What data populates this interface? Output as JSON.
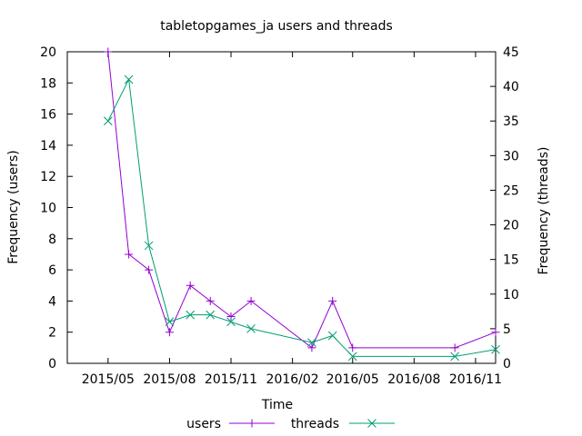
{
  "chart_data": {
    "type": "line",
    "title": "tabletopgames_ja users and threads",
    "xlabel": "Time",
    "ylabel_left": "Frequency (users)",
    "ylabel_right": "Frequency (threads)",
    "x_tick_labels": [
      "2015/05",
      "2015/08",
      "2015/11",
      "2016/02",
      "2016/05",
      "2016/08",
      "2016/11"
    ],
    "x_ticks": [
      "2015-05-01",
      "2015-08-01",
      "2015-11-01",
      "2016-02-01",
      "2016-05-01",
      "2016-08-01",
      "2016-11-01"
    ],
    "x_range": [
      "2015-03-01",
      "2016-12-01"
    ],
    "ylim_left": [
      0,
      20
    ],
    "yticks_left": [
      0,
      2,
      4,
      6,
      8,
      10,
      12,
      14,
      16,
      18,
      20
    ],
    "ylim_right": [
      0,
      45
    ],
    "yticks_right": [
      0,
      5,
      10,
      15,
      20,
      25,
      30,
      35,
      40,
      45
    ],
    "legend_position": "bottom-center",
    "series": [
      {
        "name": "users",
        "axis": "left",
        "color": "#9400d3",
        "marker": "plus",
        "x": [
          "2015-05-01",
          "2015-06-01",
          "2015-07-01",
          "2015-08-01",
          "2015-09-01",
          "2015-10-01",
          "2015-11-01",
          "2015-12-01",
          "2016-03-01",
          "2016-04-01",
          "2016-05-01",
          "2016-10-01",
          "2016-12-01"
        ],
        "values": [
          20,
          7,
          6,
          2,
          5,
          4,
          3,
          4,
          1,
          4,
          1,
          1,
          2
        ]
      },
      {
        "name": "threads",
        "axis": "right",
        "color": "#009e73",
        "marker": "cross",
        "x": [
          "2015-05-01",
          "2015-06-01",
          "2015-07-01",
          "2015-08-01",
          "2015-09-01",
          "2015-10-01",
          "2015-11-01",
          "2015-12-01",
          "2016-03-01",
          "2016-04-01",
          "2016-05-01",
          "2016-10-01",
          "2016-12-01"
        ],
        "values": [
          35,
          41,
          17,
          6,
          7,
          7,
          6,
          5,
          3,
          4,
          1,
          1,
          2
        ]
      }
    ]
  }
}
